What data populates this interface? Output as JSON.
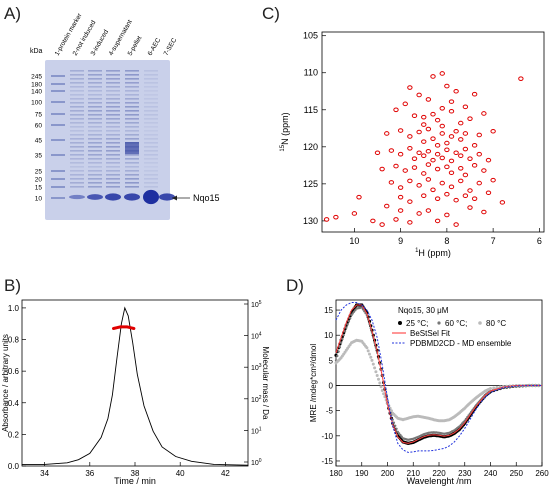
{
  "panels": {
    "A": {
      "letter": "A)",
      "lane_labels": [
        "1-protein marker",
        "2-not induced",
        "3-induced",
        "4-supernatant",
        "5-pellet",
        "6-AEC",
        "7-SEC"
      ],
      "kda_unit": "kDa",
      "kda_markers": [
        "245",
        "180",
        "140",
        "100",
        "75",
        "60",
        "45",
        "35",
        "25",
        "20",
        "15",
        "10"
      ],
      "band_label": "Nqo15",
      "gel_color": "#c9d0ea"
    },
    "B": {
      "letter": "B)",
      "xlabel": "Time / min",
      "ylabel_left": "Absorbance / arbitrary units",
      "ylabel_right": "Molecular mass / Da",
      "x_ticks": [
        "34",
        "36",
        "38",
        "40",
        "42"
      ],
      "y_ticks_left": [
        "0.0",
        "0.2",
        "0.4",
        "0.6",
        "0.8",
        "1.0"
      ],
      "y_ticks_right": [
        {
          "base": "10",
          "exp": "0"
        },
        {
          "base": "10",
          "exp": "1"
        },
        {
          "base": "10",
          "exp": "2"
        },
        {
          "base": "10",
          "exp": "3"
        },
        {
          "base": "10",
          "exp": "4"
        },
        {
          "base": "10",
          "exp": "5"
        }
      ]
    },
    "C": {
      "letter": "C)",
      "xlabel_sup": "1",
      "xlabel_main": "H  (ppm)",
      "ylabel_sup": "15",
      "ylabel_main": "N  (ppm)",
      "x_ticks": [
        "10",
        "9",
        "8",
        "7",
        "6"
      ],
      "y_ticks": [
        "105",
        "110",
        "115",
        "120",
        "125",
        "130"
      ],
      "peak_color": "#e00000"
    },
    "D": {
      "letter": "D)",
      "xlabel": "Wavelenght /nm",
      "ylabel": "MRE /mdeg*cm²/dmol",
      "legend_title": "Nqo15, 30 μM",
      "legend_25": "25 °C;",
      "legend_60": "60 °C;",
      "legend_80": "80 °C",
      "legend_fit": "BeStSel Fit",
      "legend_md": "PDBMD2CD - MD ensemble",
      "x_ticks": [
        "180",
        "190",
        "200",
        "210",
        "220",
        "230",
        "240",
        "250",
        "260"
      ],
      "y_ticks": [
        "15",
        "10",
        "5",
        "0",
        "-5",
        "-10",
        "-15"
      ]
    }
  },
  "chart_data": [
    {
      "panel": "B",
      "type": "line",
      "xlabel": "Time / min",
      "ylabel": "Absorbance / arbitrary units",
      "xlim": [
        33,
        43
      ],
      "ylim": [
        0,
        1.05
      ],
      "series": [
        {
          "values_x": [
            33,
            34,
            35,
            35.5,
            36,
            36.5,
            36.8,
            37.0,
            37.2,
            37.4,
            37.55,
            37.7,
            37.9,
            38.1,
            38.4,
            38.8,
            39.2,
            39.8,
            40.5,
            41.5,
            43
          ],
          "values_y": [
            0.01,
            0.01,
            0.02,
            0.04,
            0.08,
            0.18,
            0.3,
            0.45,
            0.68,
            0.9,
            1.0,
            0.95,
            0.78,
            0.58,
            0.38,
            0.22,
            0.12,
            0.06,
            0.03,
            0.01,
            0.005
          ],
          "color": "#000000"
        },
        {
          "values_x": [
            37.05,
            37.2,
            37.35,
            37.5,
            37.65,
            37.8,
            37.95
          ],
          "values_y": [
            0.87,
            0.875,
            0.88,
            0.88,
            0.88,
            0.875,
            0.87
          ],
          "color": "#e00000"
        }
      ]
    },
    {
      "panel": "C",
      "type": "scatter",
      "xlabel": "1H (ppm)",
      "ylabel": "15N (ppm)",
      "xlim": [
        10.7,
        5.9
      ],
      "ylim": [
        104.5,
        131.5
      ],
      "points": [
        [
          10.6,
          129.8
        ],
        [
          10.4,
          129.5
        ],
        [
          10.0,
          129.0
        ],
        [
          9.9,
          126.8
        ],
        [
          9.6,
          130.0
        ],
        [
          9.4,
          130.5
        ],
        [
          9.3,
          128.0
        ],
        [
          9.1,
          129.8
        ],
        [
          9.0,
          128.6
        ],
        [
          8.8,
          130.2
        ],
        [
          8.6,
          129.0
        ],
        [
          8.4,
          128.6
        ],
        [
          8.2,
          130.0
        ],
        [
          8.0,
          129.2
        ],
        [
          7.8,
          130.5
        ],
        [
          7.5,
          128.2
        ],
        [
          7.2,
          128.8
        ],
        [
          6.4,
          110.8
        ],
        [
          8.3,
          110.5
        ],
        [
          8.1,
          110.1
        ],
        [
          8.0,
          111.8
        ],
        [
          7.8,
          112.5
        ],
        [
          7.4,
          112.9
        ],
        [
          8.6,
          113.0
        ],
        [
          9.1,
          115.0
        ],
        [
          8.9,
          114.2
        ],
        [
          8.7,
          115.8
        ],
        [
          8.5,
          116.0
        ],
        [
          8.3,
          115.6
        ],
        [
          8.2,
          116.4
        ],
        [
          8.1,
          114.8
        ],
        [
          7.9,
          115.2
        ],
        [
          7.7,
          116.8
        ],
        [
          7.5,
          116.2
        ],
        [
          7.2,
          115.5
        ],
        [
          7.0,
          117.9
        ],
        [
          9.3,
          118.2
        ],
        [
          9.0,
          117.8
        ],
        [
          8.8,
          118.6
        ],
        [
          8.6,
          118.0
        ],
        [
          8.5,
          119.3
        ],
        [
          8.4,
          117.6
        ],
        [
          8.3,
          118.9
        ],
        [
          8.2,
          119.8
        ],
        [
          8.1,
          118.2
        ],
        [
          8.0,
          119.5
        ],
        [
          7.9,
          118.6
        ],
        [
          7.8,
          117.9
        ],
        [
          7.7,
          119.0
        ],
        [
          7.6,
          118.2
        ],
        [
          7.4,
          119.8
        ],
        [
          7.3,
          118.4
        ],
        [
          9.5,
          120.8
        ],
        [
          9.2,
          120.5
        ],
        [
          9.0,
          121.0
        ],
        [
          8.8,
          120.2
        ],
        [
          8.7,
          121.6
        ],
        [
          8.6,
          120.8
        ],
        [
          8.5,
          121.2
        ],
        [
          8.4,
          120.6
        ],
        [
          8.3,
          121.8
        ],
        [
          8.2,
          121.0
        ],
        [
          8.1,
          121.5
        ],
        [
          8.0,
          120.4
        ],
        [
          7.9,
          121.9
        ],
        [
          7.8,
          120.8
        ],
        [
          7.7,
          121.2
        ],
        [
          7.6,
          120.3
        ],
        [
          7.5,
          121.6
        ],
        [
          7.3,
          121.0
        ],
        [
          7.1,
          121.8
        ],
        [
          9.4,
          123.0
        ],
        [
          9.1,
          122.6
        ],
        [
          8.9,
          123.2
        ],
        [
          8.7,
          122.8
        ],
        [
          8.5,
          123.6
        ],
        [
          8.4,
          122.4
        ],
        [
          8.2,
          123.0
        ],
        [
          8.0,
          122.7
        ],
        [
          7.9,
          123.5
        ],
        [
          7.7,
          122.9
        ],
        [
          7.6,
          123.8
        ],
        [
          7.4,
          122.5
        ],
        [
          7.2,
          123.2
        ],
        [
          9.2,
          124.8
        ],
        [
          9.0,
          125.5
        ],
        [
          8.8,
          124.6
        ],
        [
          8.6,
          125.2
        ],
        [
          8.4,
          124.4
        ],
        [
          8.3,
          125.8
        ],
        [
          8.1,
          124.9
        ],
        [
          7.9,
          125.4
        ],
        [
          7.7,
          124.6
        ],
        [
          7.5,
          125.9
        ],
        [
          7.3,
          124.9
        ],
        [
          7.0,
          124.5
        ],
        [
          9.0,
          126.8
        ],
        [
          8.8,
          127.4
        ],
        [
          8.5,
          126.6
        ],
        [
          8.2,
          127.0
        ],
        [
          8.0,
          126.4
        ],
        [
          7.8,
          127.2
        ],
        [
          7.6,
          126.6
        ],
        [
          7.4,
          127.0
        ],
        [
          7.1,
          126.2
        ],
        [
          6.8,
          127.5
        ],
        [
          8.5,
          117.0
        ],
        [
          8.1,
          117.2
        ],
        [
          7.6,
          114.6
        ],
        [
          8.8,
          112.0
        ],
        [
          8.4,
          113.6
        ],
        [
          7.9,
          113.9
        ]
      ]
    },
    {
      "panel": "D",
      "type": "line",
      "xlabel": "Wavelenght /nm",
      "ylabel": "MRE /mdeg*cm²/dmol",
      "xlim": [
        180,
        260
      ],
      "ylim": [
        -16,
        17
      ],
      "series": [
        {
          "name": "25 °C",
          "x": [
            180,
            182,
            184,
            186,
            188,
            190,
            192,
            194,
            196,
            198,
            200,
            202,
            204,
            206,
            208,
            210,
            212,
            214,
            216,
            218,
            220,
            222,
            224,
            226,
            228,
            230,
            232,
            234,
            236,
            238,
            240,
            245,
            250,
            255,
            260
          ],
          "y": [
            6,
            9,
            12,
            14.5,
            16,
            16,
            14.5,
            11,
            7,
            2,
            -3.5,
            -7.5,
            -10,
            -11.2,
            -11.5,
            -11.3,
            -10.8,
            -10.3,
            -10,
            -9.9,
            -10,
            -10.2,
            -10,
            -9.5,
            -8.7,
            -7.5,
            -6,
            -4.5,
            -3.2,
            -2,
            -1.2,
            -0.4,
            -0.1,
            0,
            0
          ],
          "color": "#000000"
        },
        {
          "name": "60 °C",
          "x": [
            180,
            182,
            184,
            186,
            188,
            190,
            192,
            194,
            196,
            198,
            200,
            202,
            204,
            206,
            208,
            210,
            212,
            214,
            216,
            218,
            220,
            222,
            224,
            226,
            228,
            230,
            232,
            234,
            236,
            238,
            240,
            245,
            250,
            255,
            260
          ],
          "y": [
            5,
            8.5,
            11.5,
            14,
            15.3,
            15.5,
            14,
            10.5,
            6.5,
            2,
            -3,
            -6.8,
            -9.2,
            -10.5,
            -10.8,
            -10.6,
            -10.2,
            -9.7,
            -9.4,
            -9.3,
            -9.4,
            -9.6,
            -9.4,
            -8.9,
            -8.1,
            -7,
            -5.6,
            -4.2,
            -3,
            -1.9,
            -1.1,
            -0.4,
            -0.1,
            0,
            0
          ],
          "color": "#777777"
        },
        {
          "name": "80 °C",
          "x": [
            180,
            182,
            184,
            186,
            188,
            190,
            192,
            194,
            196,
            198,
            200,
            202,
            204,
            206,
            208,
            210,
            212,
            214,
            216,
            218,
            220,
            222,
            224,
            226,
            228,
            230,
            232,
            234,
            236,
            238,
            240,
            245,
            250,
            255,
            260
          ],
          "y": [
            4.5,
            5.5,
            7,
            8.5,
            9,
            8.8,
            7.5,
            5,
            2,
            -1,
            -3.5,
            -5.5,
            -6.5,
            -6.8,
            -6.5,
            -6.2,
            -6.1,
            -6.3,
            -6.5,
            -6.8,
            -7,
            -7,
            -6.8,
            -6.2,
            -5.4,
            -4.5,
            -3.5,
            -2.6,
            -1.8,
            -1.1,
            -0.6,
            -0.2,
            0,
            0,
            0
          ],
          "color": "#bbbbbb"
        },
        {
          "name": "BeStSel Fit",
          "x": [
            180,
            182,
            184,
            186,
            188,
            190,
            192,
            194,
            196,
            198,
            200,
            202,
            204,
            206,
            208,
            210,
            212,
            214,
            216,
            218,
            220,
            222,
            224,
            226,
            228,
            230,
            232,
            234,
            236,
            238,
            240,
            245,
            250,
            255,
            260
          ],
          "y": [
            6.5,
            9.5,
            12.5,
            15,
            16,
            16,
            14.3,
            10.8,
            6.8,
            1.8,
            -3.8,
            -7.7,
            -10.2,
            -11.3,
            -11.5,
            -11.2,
            -10.7,
            -10.2,
            -9.9,
            -9.8,
            -9.9,
            -10.1,
            -9.9,
            -9.4,
            -8.6,
            -7.4,
            -5.9,
            -4.4,
            -3.1,
            -1.9,
            -1.1,
            -0.3,
            0,
            0,
            0
          ],
          "color": "#ff4040"
        },
        {
          "name": "PDBMD2CD - MD ensemble",
          "x": [
            180,
            182,
            184,
            186,
            188,
            190,
            192,
            194,
            196,
            198,
            200,
            202,
            204,
            206,
            208,
            210,
            212,
            214,
            216,
            218,
            220,
            222,
            224,
            226,
            228,
            230,
            232,
            234,
            236,
            238,
            240,
            245,
            250,
            255,
            260
          ],
          "y": [
            13,
            15,
            16,
            16.5,
            16.5,
            16,
            15,
            13,
            9.5,
            4,
            -2.5,
            -8,
            -11.5,
            -12.8,
            -13.3,
            -13.2,
            -13,
            -13,
            -13,
            -12.9,
            -12.7,
            -12.5,
            -12,
            -11.2,
            -10,
            -8.5,
            -6.8,
            -5,
            -3.5,
            -2.3,
            -1.4,
            -0.4,
            -0.1,
            0,
            0
          ],
          "color": "#2233dd"
        }
      ]
    }
  ]
}
